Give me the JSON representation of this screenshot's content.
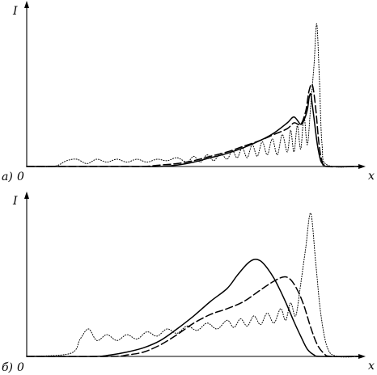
{
  "chart_data": [
    {
      "type": "line",
      "panel_label": "а)",
      "origin_label": "0",
      "xlabel": "x",
      "ylabel": "I",
      "grid": false,
      "legend": "none",
      "xlim": [
        0,
        1
      ],
      "ylim": [
        0,
        1
      ],
      "series": [
        {
          "style": "solid",
          "x": [
            0.0,
            0.05,
            0.1,
            0.15,
            0.2,
            0.25,
            0.3,
            0.35,
            0.4,
            0.45,
            0.5,
            0.55,
            0.6,
            0.65,
            0.7,
            0.74,
            0.78,
            0.8,
            0.82,
            0.83,
            0.84,
            0.845,
            0.85,
            0.855,
            0.86,
            0.87,
            0.88,
            0.89,
            0.9,
            1.0
          ],
          "y": [
            0.0,
            0.0,
            0.0,
            0.0,
            0.0,
            0.0,
            0.0,
            0.0,
            0.0,
            0.01,
            0.03,
            0.06,
            0.09,
            0.13,
            0.18,
            0.23,
            0.3,
            0.34,
            0.29,
            0.32,
            0.39,
            0.47,
            0.5,
            0.42,
            0.33,
            0.15,
            0.04,
            0.01,
            0.0,
            0.0
          ]
        },
        {
          "style": "dashed",
          "x": [
            0.0,
            0.1,
            0.2,
            0.3,
            0.35,
            0.4,
            0.45,
            0.5,
            0.55,
            0.6,
            0.65,
            0.7,
            0.74,
            0.78,
            0.8,
            0.82,
            0.835,
            0.845,
            0.855,
            0.865,
            0.875,
            0.885,
            0.9,
            1.0
          ],
          "y": [
            0.0,
            0.0,
            0.0,
            0.0,
            0.0,
            0.01,
            0.02,
            0.04,
            0.07,
            0.1,
            0.14,
            0.18,
            0.22,
            0.26,
            0.3,
            0.29,
            0.38,
            0.52,
            0.56,
            0.4,
            0.15,
            0.03,
            0.0,
            0.0
          ]
        },
        {
          "style": "dotted",
          "x": [
            0.0,
            0.08,
            0.12,
            0.15,
            0.18,
            0.21,
            0.24,
            0.27,
            0.3,
            0.33,
            0.36,
            0.39,
            0.42,
            0.45,
            0.48,
            0.5,
            0.52,
            0.54,
            0.56,
            0.58,
            0.6,
            0.615,
            0.63,
            0.645,
            0.66,
            0.675,
            0.69,
            0.705,
            0.72,
            0.735,
            0.75,
            0.765,
            0.78,
            0.79,
            0.8,
            0.81,
            0.82,
            0.83,
            0.84,
            0.85,
            0.86,
            0.868,
            0.876,
            0.884,
            0.9,
            1.0
          ],
          "y": [
            0.0,
            0.0,
            0.04,
            0.05,
            0.02,
            0.05,
            0.03,
            0.05,
            0.03,
            0.05,
            0.03,
            0.05,
            0.04,
            0.06,
            0.03,
            0.07,
            0.03,
            0.08,
            0.04,
            0.09,
            0.05,
            0.11,
            0.06,
            0.13,
            0.06,
            0.15,
            0.07,
            0.17,
            0.08,
            0.19,
            0.08,
            0.22,
            0.1,
            0.25,
            0.1,
            0.28,
            0.12,
            0.34,
            0.15,
            0.42,
            0.7,
            0.98,
            0.6,
            0.15,
            0.01,
            0.0
          ]
        }
      ]
    },
    {
      "type": "line",
      "panel_label": "б)",
      "origin_label": "0",
      "xlabel": "x",
      "ylabel": "I",
      "grid": false,
      "legend": "none",
      "xlim": [
        0,
        1
      ],
      "ylim": [
        0,
        1
      ],
      "series": [
        {
          "style": "solid",
          "x": [
            0.0,
            0.2,
            0.25,
            0.3,
            0.35,
            0.4,
            0.45,
            0.5,
            0.55,
            0.6,
            0.63,
            0.66,
            0.68,
            0.7,
            0.72,
            0.74,
            0.76,
            0.78,
            0.8,
            0.82,
            0.84,
            0.86,
            0.88,
            1.0
          ],
          "y": [
            0.0,
            0.0,
            0.01,
            0.03,
            0.06,
            0.11,
            0.19,
            0.28,
            0.38,
            0.47,
            0.56,
            0.64,
            0.67,
            0.66,
            0.61,
            0.54,
            0.45,
            0.35,
            0.24,
            0.14,
            0.05,
            0.01,
            0.0,
            0.0
          ]
        },
        {
          "style": "dashed",
          "x": [
            0.0,
            0.25,
            0.3,
            0.35,
            0.4,
            0.45,
            0.5,
            0.55,
            0.6,
            0.65,
            0.7,
            0.74,
            0.77,
            0.79,
            0.81,
            0.83,
            0.85,
            0.87,
            0.89,
            0.91,
            1.0
          ],
          "y": [
            0.0,
            0.0,
            0.01,
            0.03,
            0.08,
            0.15,
            0.23,
            0.29,
            0.33,
            0.38,
            0.46,
            0.52,
            0.55,
            0.53,
            0.46,
            0.35,
            0.2,
            0.08,
            0.02,
            0.0,
            0.0
          ]
        },
        {
          "style": "dotted",
          "x": [
            0.0,
            0.13,
            0.16,
            0.185,
            0.21,
            0.24,
            0.27,
            0.3,
            0.33,
            0.36,
            0.39,
            0.42,
            0.45,
            0.48,
            0.51,
            0.54,
            0.57,
            0.6,
            0.62,
            0.64,
            0.66,
            0.68,
            0.7,
            0.72,
            0.74,
            0.76,
            0.775,
            0.79,
            0.805,
            0.82,
            0.835,
            0.85,
            0.865,
            0.88,
            0.9,
            0.93,
            1.0
          ],
          "y": [
            0.0,
            0.02,
            0.12,
            0.19,
            0.11,
            0.15,
            0.11,
            0.15,
            0.12,
            0.17,
            0.14,
            0.19,
            0.16,
            0.21,
            0.18,
            0.23,
            0.19,
            0.25,
            0.2,
            0.26,
            0.21,
            0.28,
            0.22,
            0.3,
            0.23,
            0.33,
            0.25,
            0.37,
            0.28,
            0.5,
            0.75,
            0.99,
            0.65,
            0.3,
            0.06,
            0.0,
            0.0
          ]
        }
      ]
    }
  ]
}
